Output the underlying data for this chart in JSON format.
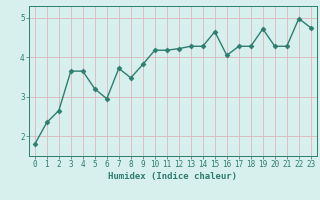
{
  "x": [
    0,
    1,
    2,
    3,
    4,
    5,
    6,
    7,
    8,
    9,
    10,
    11,
    12,
    13,
    14,
    15,
    16,
    17,
    18,
    19,
    20,
    21,
    22,
    23
  ],
  "y": [
    1.8,
    2.35,
    2.65,
    3.65,
    3.65,
    3.2,
    2.95,
    3.72,
    3.48,
    3.82,
    4.18,
    4.18,
    4.22,
    4.28,
    4.28,
    4.65,
    4.05,
    4.28,
    4.28,
    4.72,
    4.28,
    4.28,
    4.98,
    4.75
  ],
  "line_color": "#2e7d6e",
  "marker": "D",
  "markersize": 2.5,
  "linewidth": 1.0,
  "xlabel": "Humidex (Indice chaleur)",
  "ylim": [
    1.5,
    5.3
  ],
  "xlim": [
    -0.5,
    23.5
  ],
  "yticks": [
    2,
    3,
    4,
    5
  ],
  "xticks": [
    0,
    1,
    2,
    3,
    4,
    5,
    6,
    7,
    8,
    9,
    10,
    11,
    12,
    13,
    14,
    15,
    16,
    17,
    18,
    19,
    20,
    21,
    22,
    23
  ],
  "bg_color": "#d8f0ed",
  "plot_bg_color": "#d8f0ed",
  "grid_color": "#d8b8b8",
  "tick_color": "#2e7d6e",
  "label_color": "#2e7d6e",
  "xlabel_fontsize": 6.5,
  "tick_fontsize": 5.5
}
